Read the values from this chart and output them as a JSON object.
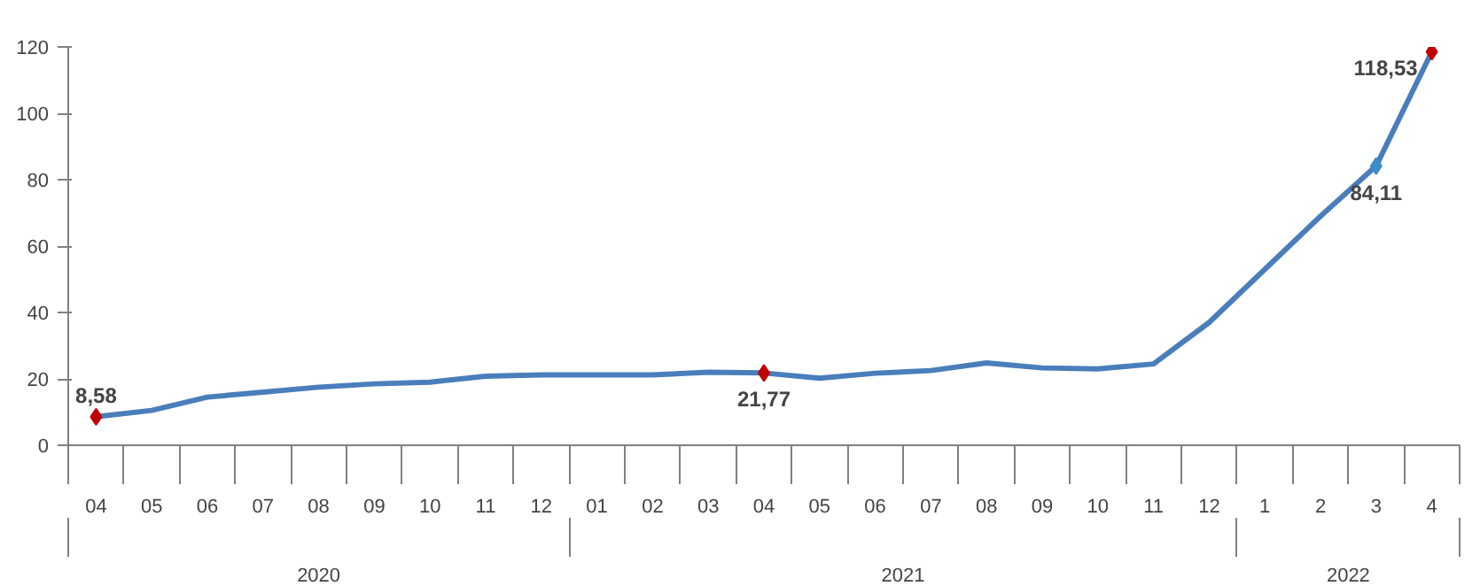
{
  "chart_data": {
    "type": "line",
    "categories": [
      "04",
      "05",
      "06",
      "07",
      "08",
      "09",
      "10",
      "11",
      "12",
      "01",
      "02",
      "03",
      "04",
      "05",
      "06",
      "07",
      "08",
      "09",
      "10",
      "11",
      "12",
      "1",
      "2",
      "3",
      "4"
    ],
    "annotations": [
      "2020",
      "2021",
      "2022"
    ],
    "series": [
      {
        "color": "#4a7ebb",
        "values": [
          8.58,
          10.5,
          14.5,
          16,
          17.5,
          18.5,
          19,
          20.8,
          21.2,
          21.2,
          21.2,
          22,
          21.77,
          20.2,
          21.7,
          22.5,
          24.8,
          23.3,
          23,
          24.5,
          37,
          53,
          69,
          84.11,
          118.53
        ],
        "colors": [
          "#c00000",
          null,
          null,
          null,
          null,
          null,
          null,
          null,
          null,
          null,
          null,
          null,
          "#c00000",
          null,
          null,
          null,
          null,
          null,
          null,
          null,
          null,
          null,
          null,
          "#3c8dcc",
          "#c00000"
        ],
        "value_labels": [
          "8,58",
          null,
          null,
          null,
          null,
          null,
          null,
          null,
          null,
          null,
          null,
          null,
          "21,77",
          null,
          null,
          null,
          null,
          null,
          null,
          null,
          null,
          null,
          null,
          "84,11",
          "118,53"
        ]
      }
    ],
    "line_style": "solid",
    "ylim": [
      0,
      120
    ],
    "yticks": [
      0,
      20,
      40,
      60,
      80,
      100,
      120
    ],
    "grid": false
  }
}
